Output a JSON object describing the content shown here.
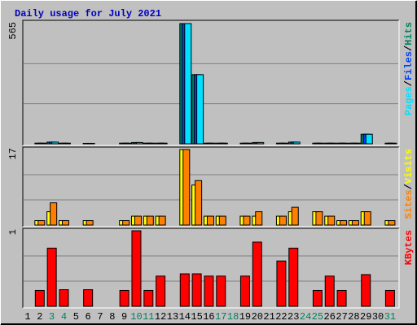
{
  "chart_data": [
    {
      "type": "bar",
      "title": "Daily usage for July 2021",
      "ylim": [
        0,
        565
      ],
      "yticks": [
        565
      ],
      "grid": true,
      "legend_separator": "/",
      "series": [
        {
          "name": "Hits",
          "color": "#00805c",
          "values": [
            0,
            3,
            8,
            3,
            0,
            2,
            0,
            0,
            3,
            6,
            3,
            3,
            0,
            565,
            325,
            3,
            3,
            0,
            3,
            6,
            0,
            3,
            8,
            0,
            3,
            3,
            3,
            3,
            45,
            0,
            3
          ]
        },
        {
          "name": "Files",
          "color": "#0040ff",
          "values": [
            0,
            3,
            8,
            3,
            0,
            2,
            0,
            0,
            3,
            6,
            3,
            3,
            0,
            565,
            325,
            3,
            3,
            0,
            3,
            6,
            0,
            3,
            8,
            0,
            3,
            3,
            3,
            3,
            45,
            0,
            3
          ]
        },
        {
          "name": "Pages",
          "color": "#00e0ff",
          "values": [
            0,
            3,
            8,
            3,
            0,
            2,
            0,
            0,
            3,
            6,
            3,
            3,
            0,
            565,
            325,
            3,
            3,
            0,
            3,
            6,
            0,
            3,
            8,
            0,
            3,
            3,
            3,
            3,
            45,
            0,
            3
          ]
        }
      ]
    },
    {
      "type": "bar",
      "ylim": [
        0,
        17
      ],
      "yticks": [
        17
      ],
      "grid": true,
      "legend_separator": "/",
      "series": [
        {
          "name": "Visits",
          "color": "#ffff00",
          "values": [
            0,
            1,
            3,
            1,
            0,
            1,
            0,
            0,
            1,
            2,
            2,
            2,
            0,
            17,
            9,
            2,
            2,
            0,
            2,
            2,
            0,
            2,
            3,
            0,
            3,
            2,
            1,
            1,
            3,
            0,
            1
          ]
        },
        {
          "name": "Sites",
          "color": "#ff8000",
          "values": [
            0,
            1,
            5,
            1,
            0,
            1,
            0,
            0,
            1,
            2,
            2,
            2,
            0,
            17,
            10,
            2,
            2,
            0,
            2,
            3,
            0,
            2,
            4,
            0,
            3,
            2,
            1,
            1,
            3,
            0,
            1
          ]
        }
      ]
    },
    {
      "type": "bar",
      "ylim": [
        0,
        1
      ],
      "yticks": [
        1
      ],
      "grid": true,
      "categories": [
        1,
        2,
        3,
        4,
        5,
        6,
        7,
        8,
        9,
        10,
        11,
        12,
        13,
        14,
        15,
        16,
        17,
        18,
        19,
        20,
        21,
        22,
        23,
        24,
        25,
        26,
        27,
        28,
        29,
        30,
        31
      ],
      "weekend_days": [
        3,
        4,
        10,
        11,
        17,
        18,
        24,
        25,
        31
      ],
      "weekday_color": "#000000",
      "weekend_color": "#00805c",
      "series": [
        {
          "name": "KBytes",
          "color": "#ff0000",
          "values": [
            0,
            0.21,
            0.77,
            0.22,
            0,
            0.22,
            0,
            0,
            0.21,
            1,
            0.21,
            0.4,
            0,
            0.43,
            0.43,
            0.4,
            0.4,
            0,
            0.4,
            0.85,
            0,
            0.6,
            0.77,
            0,
            0.21,
            0.4,
            0.21,
            0,
            0.42,
            0,
            0.21
          ]
        }
      ]
    }
  ]
}
